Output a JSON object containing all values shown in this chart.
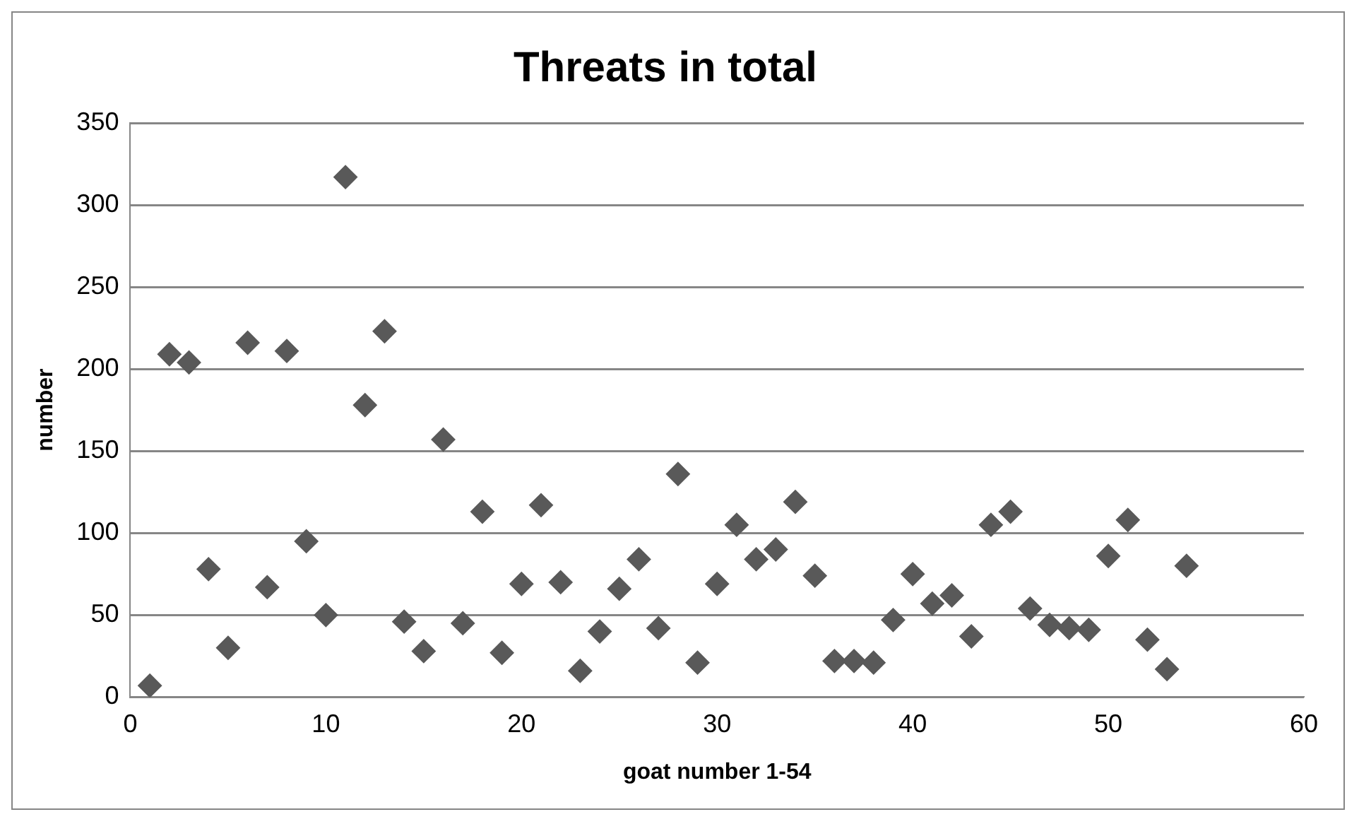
{
  "chart_data": {
    "type": "scatter",
    "title": "Threats in total",
    "xlabel": "goat number 1-54",
    "ylabel": "number",
    "x": [
      1,
      2,
      3,
      4,
      5,
      6,
      7,
      8,
      9,
      10,
      11,
      12,
      13,
      14,
      15,
      16,
      17,
      18,
      19,
      20,
      21,
      22,
      23,
      24,
      25,
      26,
      27,
      28,
      29,
      30,
      31,
      32,
      33,
      34,
      35,
      36,
      37,
      38,
      39,
      40,
      41,
      42,
      43,
      44,
      45,
      46,
      47,
      48,
      49,
      50,
      51,
      52,
      53,
      54
    ],
    "series": [
      {
        "color": "#595959",
        "values": [
          7,
          209,
          204,
          78,
          30,
          216,
          67,
          211,
          95,
          50,
          317,
          178,
          223,
          46,
          28,
          157,
          45,
          113,
          27,
          69,
          117,
          70,
          16,
          40,
          66,
          84,
          42,
          136,
          21,
          69,
          105,
          84,
          90,
          119,
          74,
          22,
          22,
          21,
          47,
          75,
          57,
          62,
          37,
          105,
          113,
          54,
          44,
          42,
          41,
          86,
          108,
          35,
          17,
          80
        ]
      }
    ],
    "xlim": [
      0,
      60
    ],
    "xticks": [
      0,
      10,
      20,
      30,
      40,
      50,
      60
    ],
    "ylim": [
      0,
      350
    ],
    "yticks": [
      0,
      50,
      100,
      150,
      200,
      250,
      300,
      350
    ],
    "grid": "y",
    "legend": false,
    "marker": "diamond"
  }
}
